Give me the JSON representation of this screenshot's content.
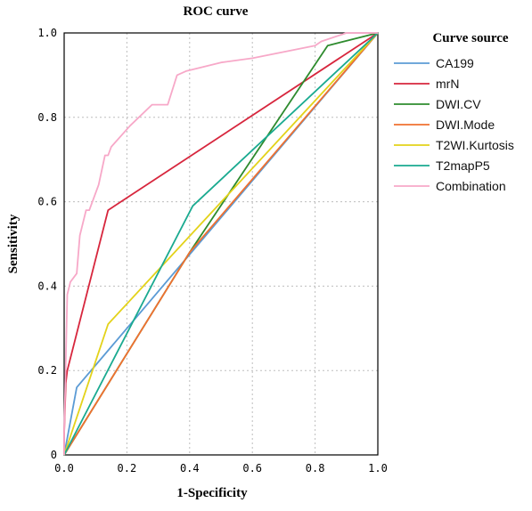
{
  "chart_data": {
    "type": "line",
    "title": "ROC curve",
    "xlabel": "1-Specificity",
    "ylabel": "Sensitivity",
    "xlim": [
      0,
      1
    ],
    "ylim": [
      0,
      1
    ],
    "grid": true,
    "legend_title": "Curve source",
    "legend_position": "right",
    "x_ticks": [
      "0.0",
      "0.2",
      "0.4",
      "0.6",
      "0.8",
      "1.0"
    ],
    "y_ticks": [
      "0",
      "0.2",
      "0.4",
      "0.6",
      "0.8",
      "1.0"
    ],
    "series": [
      {
        "name": "CA199",
        "color": "#5b9bd5",
        "points": [
          [
            0,
            0
          ],
          [
            0.04,
            0.16
          ],
          [
            1,
            1
          ]
        ]
      },
      {
        "name": "mrN",
        "color": "#d7263d",
        "points": [
          [
            0,
            0
          ],
          [
            0,
            0.05
          ],
          [
            0.005,
            0.17
          ],
          [
            0.01,
            0.2
          ],
          [
            0.14,
            0.58
          ],
          [
            1,
            1
          ]
        ]
      },
      {
        "name": "DWI.CV",
        "color": "#2e8b2e",
        "points": [
          [
            0,
            0
          ],
          [
            0.4,
            0.48
          ],
          [
            0.84,
            0.97
          ],
          [
            1,
            1
          ]
        ]
      },
      {
        "name": "DWI.Mode",
        "color": "#f07030",
        "points": [
          [
            0,
            0
          ],
          [
            0.4,
            0.48
          ],
          [
            1,
            1
          ]
        ]
      },
      {
        "name": "T2WI.Kurtosis",
        "color": "#e3d21a",
        "points": [
          [
            0,
            0
          ],
          [
            0.14,
            0.31
          ],
          [
            1,
            1
          ]
        ]
      },
      {
        "name": "T2mapP5",
        "color": "#1aaa90",
        "points": [
          [
            0,
            0
          ],
          [
            0.41,
            0.59
          ],
          [
            1,
            1
          ]
        ]
      },
      {
        "name": "Combination",
        "color": "#f7a8c8",
        "points": [
          [
            0,
            0
          ],
          [
            0,
            0.05
          ],
          [
            0.01,
            0.38
          ],
          [
            0.02,
            0.41
          ],
          [
            0.04,
            0.43
          ],
          [
            0.05,
            0.52
          ],
          [
            0.07,
            0.58
          ],
          [
            0.08,
            0.58
          ],
          [
            0.11,
            0.64
          ],
          [
            0.13,
            0.71
          ],
          [
            0.14,
            0.71
          ],
          [
            0.15,
            0.73
          ],
          [
            0.21,
            0.78
          ],
          [
            0.28,
            0.83
          ],
          [
            0.33,
            0.83
          ],
          [
            0.36,
            0.9
          ],
          [
            0.39,
            0.91
          ],
          [
            0.5,
            0.93
          ],
          [
            0.6,
            0.94
          ],
          [
            0.8,
            0.97
          ],
          [
            0.82,
            0.98
          ],
          [
            0.9,
            1
          ],
          [
            1,
            1
          ]
        ]
      }
    ]
  }
}
